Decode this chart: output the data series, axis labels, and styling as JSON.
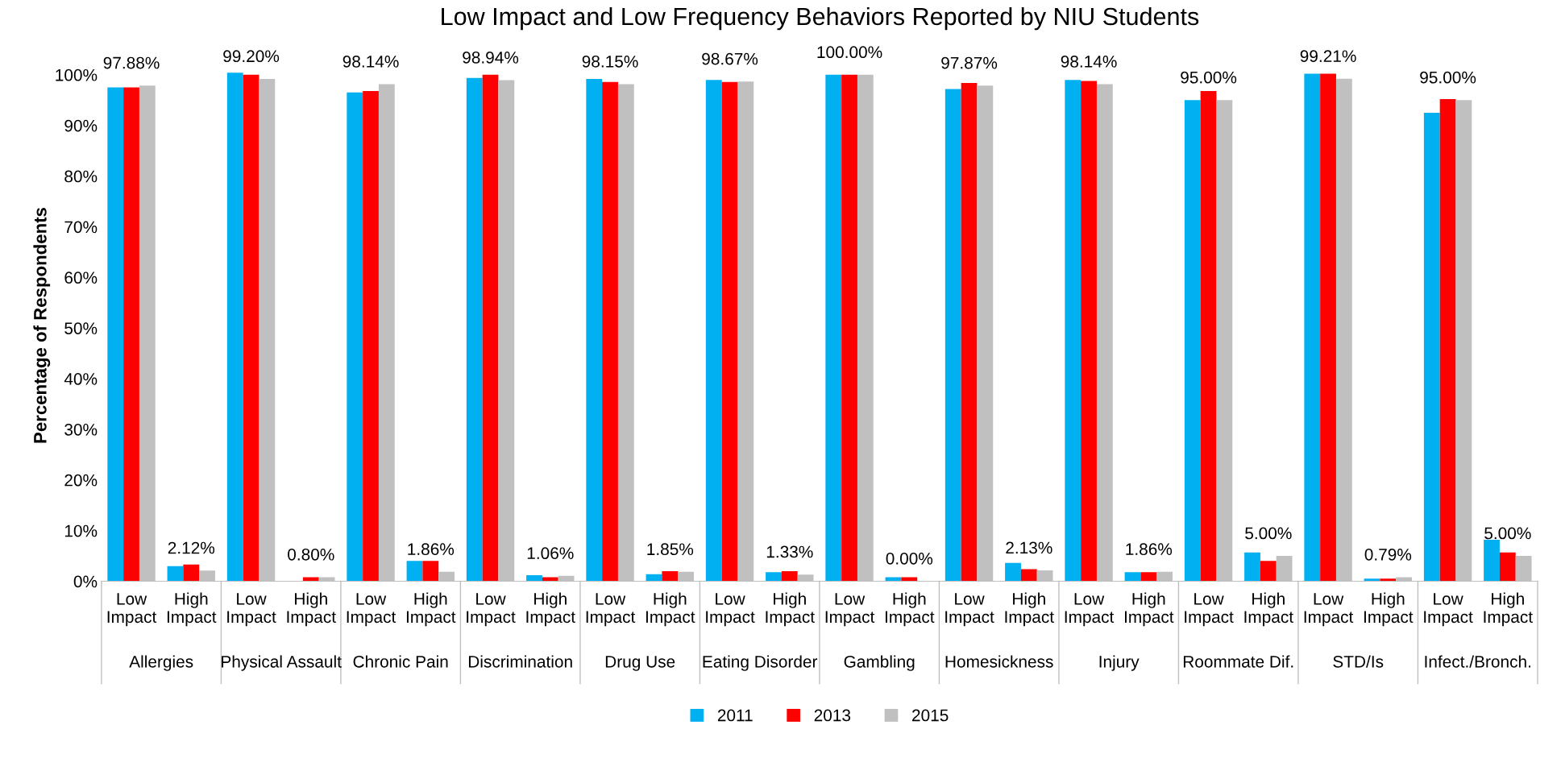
{
  "chart_data": {
    "type": "bar",
    "title": "Low Impact and Low Frequency Behaviors Reported by NIU Students",
    "ylabel": "Percentage of Respondents",
    "categories": [
      "Low Impact",
      "High Impact",
      "Low Impact",
      "High Impact",
      "Low Impact",
      "High Impact",
      "Low Impact",
      "High Impact",
      "Low Impact",
      "High Impact",
      "Low Impact",
      "High Impact",
      "Low Impact",
      "High Impact",
      "Low Impact",
      "High Impact",
      "Low Impact",
      "High Impact",
      "Low Impact",
      "High Impact",
      "Low Impact",
      "High Impact",
      "Low Impact",
      "High Impact"
    ],
    "annotations": [
      "Allergies",
      "Physical Assault",
      "Chronic Pain",
      "Discrimination",
      "Drug Use",
      "Eating Disorder",
      "Gambling",
      "Homesickness",
      "Injury",
      "Roommate Dif.",
      "STD/Is",
      "Infect./Bronch."
    ],
    "series": [
      {
        "name": "2011",
        "color": "#00b0f0",
        "values": [
          97.5,
          3.0,
          100.4,
          0,
          96.5,
          4.0,
          99.4,
          1.2,
          99.2,
          1.4,
          99.0,
          1.8,
          100,
          0.8,
          97.2,
          3.6,
          99.0,
          1.8,
          95.0,
          5.7,
          100.2,
          0.5,
          92.5,
          8.2
        ]
      },
      {
        "name": "2013",
        "color": "#ff0000",
        "values": [
          97.5,
          3.3,
          100,
          0.8,
          96.8,
          4.0,
          100,
          0.8,
          98.6,
          2.0,
          98.6,
          2.0,
          100,
          0.8,
          98.4,
          2.4,
          98.8,
          1.8,
          96.8,
          4.0,
          100.2,
          0.5,
          95.2,
          5.7
        ]
      },
      {
        "name": "2015",
        "color": "#c0c0c0",
        "values": [
          97.88,
          2.12,
          99.2,
          0.8,
          98.14,
          1.86,
          98.94,
          1.06,
          98.15,
          1.85,
          98.67,
          1.33,
          100.0,
          0.0,
          97.87,
          2.13,
          98.14,
          1.86,
          95.0,
          5.0,
          99.21,
          0.79,
          95.0,
          5.0
        ],
        "value_labels": [
          "97.88%",
          "2.12%",
          "99.20%",
          "0.80%",
          "98.14%",
          "1.86%",
          "98.94%",
          "1.06%",
          "98.15%",
          "1.85%",
          "98.67%",
          "1.33%",
          "100.00%",
          "0.00%",
          "97.87%",
          "2.13%",
          "98.14%",
          "1.86%",
          "95.00%",
          "5.00%",
          "99.21%",
          "0.79%",
          "95.00%",
          "5.00%"
        ]
      }
    ],
    "ylim": [
      0,
      101
    ],
    "yticks": [
      {
        "value": 0,
        "label": "0%"
      },
      {
        "value": 10,
        "label": "10%"
      },
      {
        "value": 20,
        "label": "20%"
      },
      {
        "value": 30,
        "label": "30%"
      },
      {
        "value": 40,
        "label": "40%"
      },
      {
        "value": 50,
        "label": "50%"
      },
      {
        "value": 60,
        "label": "60%"
      },
      {
        "value": 70,
        "label": "70%"
      },
      {
        "value": 80,
        "label": "80%"
      },
      {
        "value": 90,
        "label": "90%"
      },
      {
        "value": 100,
        "label": "100%"
      }
    ],
    "grid": false,
    "legend": "bottom"
  }
}
